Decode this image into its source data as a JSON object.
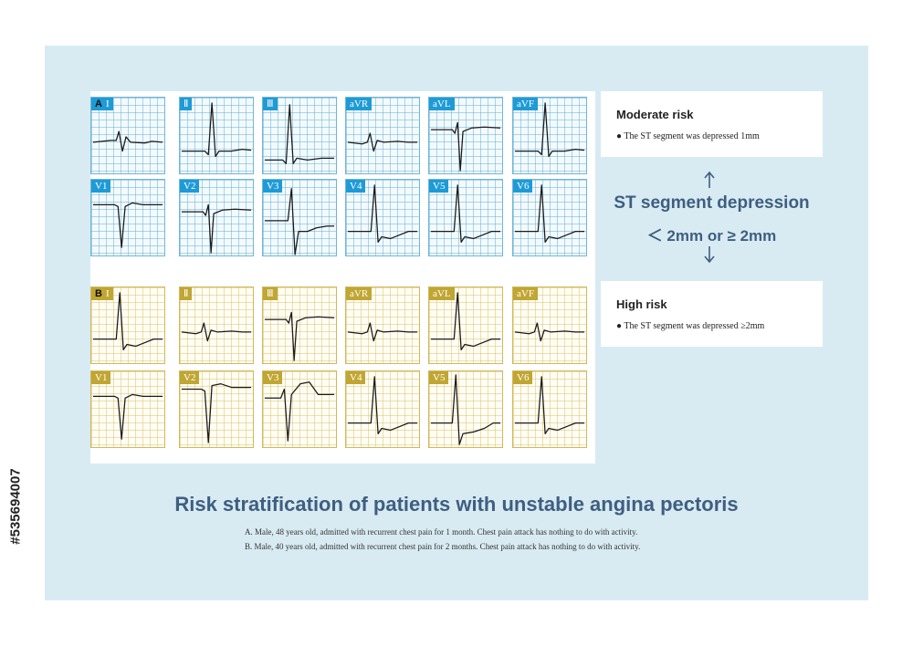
{
  "colors": {
    "panel_bg": "#d8ebf3",
    "blue_accent": "#1e9bd7",
    "gold_accent": "#c0a632",
    "heading": "#3f5e80"
  },
  "panel_a": {
    "letter": "A",
    "leads": [
      {
        "label": "I",
        "trace": "flat-small-qrs"
      },
      {
        "label": "Ⅱ",
        "trace": "tall-r"
      },
      {
        "label": "Ⅲ",
        "trace": "tall-r-low"
      },
      {
        "label": "aVR",
        "trace": "small-deflection"
      },
      {
        "label": "aVL",
        "trace": "deep-s-up-st"
      },
      {
        "label": "aVF",
        "trace": "tall-r"
      },
      {
        "label": "V1",
        "trace": "deep-qs"
      },
      {
        "label": "V2",
        "trace": "deep-s-up-st"
      },
      {
        "label": "V3",
        "trace": "rs-depressed"
      },
      {
        "label": "V4",
        "trace": "tall-r-depressed"
      },
      {
        "label": "V5",
        "trace": "tall-r-depressed"
      },
      {
        "label": "V6",
        "trace": "tall-r-depressed"
      }
    ]
  },
  "panel_b": {
    "letter": "B",
    "leads": [
      {
        "label": "I",
        "trace": "tall-r-depressed"
      },
      {
        "label": "Ⅱ",
        "trace": "small-deflection"
      },
      {
        "label": "Ⅲ",
        "trace": "deep-s-up-st"
      },
      {
        "label": "aVR",
        "trace": "small-deflection"
      },
      {
        "label": "aVL",
        "trace": "tall-r-depressed"
      },
      {
        "label": "aVF",
        "trace": "small-deflection"
      },
      {
        "label": "V1",
        "trace": "deep-qs"
      },
      {
        "label": "V2",
        "trace": "deep-qs-up-st"
      },
      {
        "label": "V3",
        "trace": "rs-up-st"
      },
      {
        "label": "V4",
        "trace": "tall-r-depressed"
      },
      {
        "label": "V5",
        "trace": "tall-r-deep-s"
      },
      {
        "label": "V6",
        "trace": "tall-r-depressed"
      }
    ]
  },
  "moderate": {
    "title": "Moderate risk",
    "bullet": "● The ST segment was depressed 1mm"
  },
  "high": {
    "title": "High risk",
    "bullet": "● The ST segment was depressed ≥2mm"
  },
  "st": {
    "title": "ST segment depression",
    "sub": "＜ 2mm or ≥ 2mm"
  },
  "main_title": "Risk stratification of patients with unstable angina pectoris",
  "captions": [
    "A. Male, 48 years old, admitted with recurrent chest pain for 1 month. Chest pain attack has nothing to do with activity.",
    "B. Male, 40 years old, admitted with recurrent chest pain for 2 months. Chest pain attack has nothing to do with activity."
  ],
  "side_id": "#535694007"
}
